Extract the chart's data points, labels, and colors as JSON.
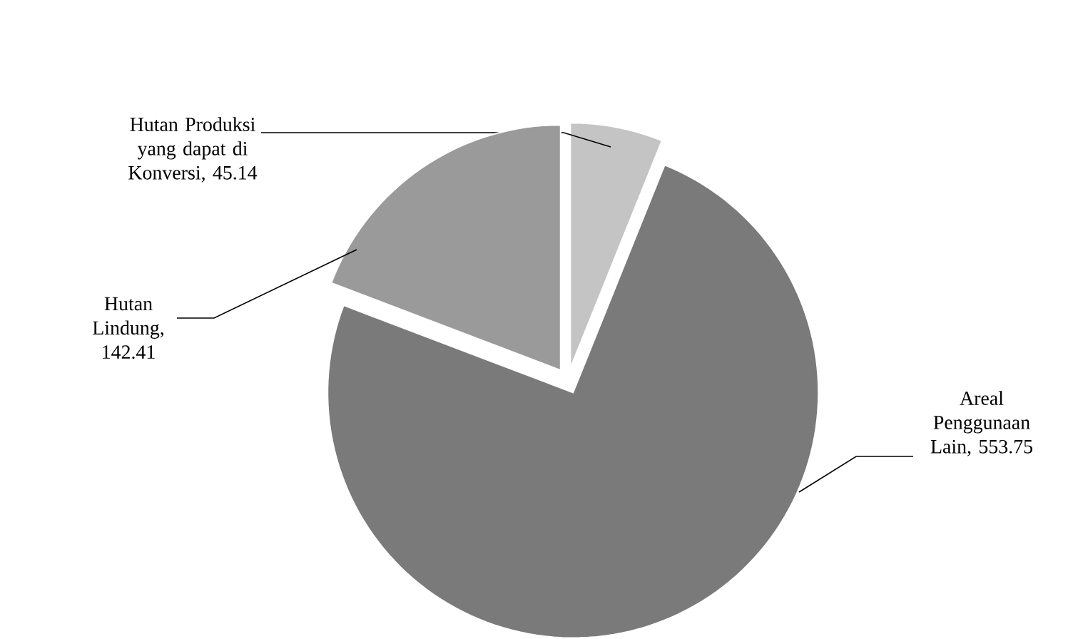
{
  "chart_data": {
    "type": "pie",
    "categories": [
      "Hutan Produksi yang dapat di Konversi",
      "Areal Penggunaan Lain",
      "Hutan Lindung"
    ],
    "values": [
      45.14,
      553.75,
      142.41
    ],
    "colors": [
      "#c4c4c4",
      "#7a7a7a",
      "#9a9a9a"
    ],
    "value_labels": [
      ", 45.14",
      ", 553.75",
      ", 142.41"
    ]
  }
}
